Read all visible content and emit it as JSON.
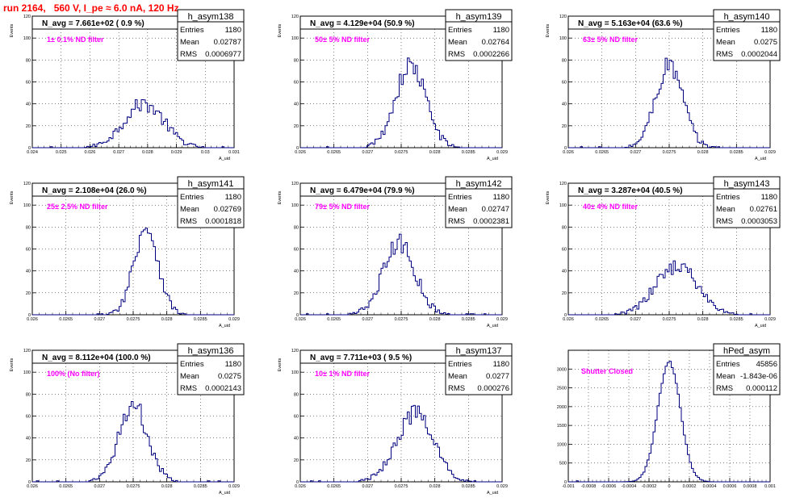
{
  "page_title": "run 2164,   560 V, I_pe ≈ 6.0 nA, 120 Hz",
  "colors": {
    "histogram": "#000080",
    "filter_label": "#ff00ff",
    "title": "#ff0000",
    "grid": "#000000"
  },
  "chart_data": [
    {
      "type": "histogram",
      "name": "h_asym138",
      "headline": "N_avg = 7.661e+02 ( 0.9 %)",
      "filter_label": "1± 0.1% ND filter",
      "stats": {
        "entries": "1180",
        "mean": "0.02787",
        "rms": "0.0006977"
      },
      "stats_labels": [
        "Entries",
        "Mean",
        "RMS"
      ],
      "xlabel": "A_uid",
      "ylabel": "Events",
      "xlim": [
        0.024,
        0.031
      ],
      "ylim": [
        0,
        120
      ],
      "xticks": [
        "0.024",
        "0.025",
        "0.026",
        "0.027",
        "0.028",
        "0.029",
        "0.03",
        "0.031"
      ],
      "yticks": [
        "0",
        "20",
        "40",
        "60",
        "80",
        "100",
        "120"
      ],
      "grid": true,
      "mean_value": 0.02787,
      "rms_value": 0.0006977,
      "peak": 40
    },
    {
      "type": "histogram",
      "name": "h_asym139",
      "headline": "N_avg = 4.129e+04 (50.9 %)",
      "filter_label": "50± 5% ND filter",
      "stats": {
        "entries": "1180",
        "mean": "0.02764",
        "rms": "0.0002266"
      },
      "stats_labels": [
        "Entries",
        "Mean",
        "RMS"
      ],
      "xlabel": "A_uid",
      "ylabel": "Events",
      "xlim": [
        0.026,
        0.029
      ],
      "ylim": [
        0,
        120
      ],
      "xticks": [
        "0.026",
        "0.0265",
        "0.027",
        "0.0275",
        "0.028",
        "0.0285",
        "0.029"
      ],
      "yticks": [
        "0",
        "20",
        "40",
        "60",
        "80",
        "100",
        "120"
      ],
      "grid": true,
      "mean_value": 0.02764,
      "rms_value": 0.0002266,
      "peak": 75
    },
    {
      "type": "histogram",
      "name": "h_asym140",
      "headline": "N_avg = 5.163e+04 (63.6 %)",
      "filter_label": "63± 5% ND filter",
      "stats": {
        "entries": "1180",
        "mean": "0.0275",
        "rms": "0.0002044"
      },
      "stats_labels": [
        "Entries",
        "Mean",
        "RMS"
      ],
      "xlabel": "A_uid",
      "ylabel": "Events",
      "xlim": [
        0.026,
        0.029
      ],
      "ylim": [
        0,
        120
      ],
      "xticks": [
        "0.026",
        "0.0265",
        "0.027",
        "0.0275",
        "0.028",
        "0.0285",
        "0.029"
      ],
      "yticks": [
        "0",
        "20",
        "40",
        "60",
        "80",
        "100",
        "120"
      ],
      "grid": true,
      "mean_value": 0.0275,
      "rms_value": 0.0002044,
      "peak": 75
    },
    {
      "type": "histogram",
      "name": "h_asym141",
      "headline": "N_avg = 2.108e+04 (26.0 %)",
      "filter_label": "25± 2.5% ND filter",
      "stats": {
        "entries": "1180",
        "mean": "0.02769",
        "rms": "0.0001818"
      },
      "stats_labels": [
        "Entries",
        "Mean",
        "RMS"
      ],
      "xlabel": "A_uid",
      "ylabel": "Events",
      "xlim": [
        0.026,
        0.029
      ],
      "ylim": [
        0,
        120
      ],
      "xticks": [
        "0.026",
        "0.0265",
        "0.027",
        "0.0275",
        "0.028",
        "0.0285",
        "0.029"
      ],
      "yticks": [
        "0",
        "20",
        "40",
        "60",
        "80",
        "100",
        "120"
      ],
      "grid": true,
      "mean_value": 0.02769,
      "rms_value": 0.0001818,
      "peak": 80
    },
    {
      "type": "histogram",
      "name": "h_asym142",
      "headline": "N_avg = 6.479e+04 (79.9 %)",
      "filter_label": "79± 5% ND filter",
      "stats": {
        "entries": "1180",
        "mean": "0.02747",
        "rms": "0.0002381"
      },
      "stats_labels": [
        "Entries",
        "Mean",
        "RMS"
      ],
      "xlabel": "A_uid",
      "ylabel": "Events",
      "xlim": [
        0.026,
        0.029
      ],
      "ylim": [
        0,
        120
      ],
      "xticks": [
        "0.026",
        "0.0265",
        "0.027",
        "0.0275",
        "0.028",
        "0.0285",
        "0.029"
      ],
      "yticks": [
        "0",
        "20",
        "40",
        "60",
        "80",
        "100",
        "120"
      ],
      "grid": true,
      "mean_value": 0.02747,
      "rms_value": 0.0002381,
      "peak": 65
    },
    {
      "type": "histogram",
      "name": "h_asym143",
      "headline": "N_avg = 3.287e+04 (40.5 %)",
      "filter_label": "40± 4% ND filter",
      "stats": {
        "entries": "1180",
        "mean": "0.02761",
        "rms": "0.0003053"
      },
      "stats_labels": [
        "Entries",
        "Mean",
        "RMS"
      ],
      "xlabel": "A_uid",
      "ylabel": "Events",
      "xlim": [
        0.026,
        0.029
      ],
      "ylim": [
        0,
        120
      ],
      "xticks": [
        "0.026",
        "0.0265",
        "0.027",
        "0.0275",
        "0.028",
        "0.0285",
        "0.029"
      ],
      "yticks": [
        "0",
        "20",
        "40",
        "60",
        "80",
        "100",
        "120"
      ],
      "grid": true,
      "mean_value": 0.02761,
      "rms_value": 0.0003053,
      "peak": 45
    },
    {
      "type": "histogram",
      "name": "h_asym136",
      "headline": "N_avg = 8.112e+04 (100.0 %)",
      "filter_label": "100% (No filter)",
      "stats": {
        "entries": "1180",
        "mean": "0.0275",
        "rms": "0.0002143"
      },
      "stats_labels": [
        "Entries",
        "Mean",
        "RMS"
      ],
      "xlabel": "A_uid",
      "ylabel": "Events",
      "xlim": [
        0.026,
        0.029
      ],
      "ylim": [
        0,
        120
      ],
      "xticks": [
        "0.026",
        "0.0265",
        "0.027",
        "0.0275",
        "0.028",
        "0.0285",
        "0.029"
      ],
      "yticks": [
        "0",
        "20",
        "40",
        "60",
        "80",
        "100",
        "120"
      ],
      "grid": true,
      "mean_value": 0.0275,
      "rms_value": 0.0002143,
      "peak": 70
    },
    {
      "type": "histogram",
      "name": "h_asym137",
      "headline": "N_avg = 7.711e+03 ( 9.5 %)",
      "filter_label": "10± 1% ND filter",
      "stats": {
        "entries": "1180",
        "mean": "0.0277",
        "rms": "0.000276"
      },
      "stats_labels": [
        "Entries",
        "Mean",
        "RMS"
      ],
      "xlabel": "A_uid",
      "ylabel": "Events",
      "xlim": [
        0.026,
        0.029
      ],
      "ylim": [
        0,
        120
      ],
      "xticks": [
        "0.026",
        "0.0265",
        "0.027",
        "0.0275",
        "0.028",
        "0.0285",
        "0.029"
      ],
      "yticks": [
        "0",
        "20",
        "40",
        "60",
        "80",
        "100",
        "120"
      ],
      "grid": true,
      "mean_value": 0.0277,
      "rms_value": 0.000276,
      "peak": 62
    },
    {
      "type": "histogram",
      "name": "hPed_asym",
      "headline": "",
      "filter_label": "Shutter Closed",
      "stats": {
        "entries": "45856",
        "mean": "-1.843e-06",
        "rms": "0.000112"
      },
      "stats_labels": [
        "Entries",
        "Mean",
        "RMS"
      ],
      "xlabel": "",
      "ylabel": "",
      "xlim": [
        -0.001,
        0.001
      ],
      "ylim": [
        0,
        3500
      ],
      "xticks": [
        "-0.001",
        "-0.0008",
        "-0.0006",
        "-0.0004",
        "-0.0002",
        "0",
        "0.0002",
        "0.0004",
        "0.0006",
        "0.0008",
        "0.001"
      ],
      "yticks": [
        "0",
        "500",
        "1000",
        "1500",
        "2000",
        "2500",
        "3000"
      ],
      "grid": true,
      "mean_value": -1.843e-06,
      "rms_value": 0.000112,
      "peak": 3200
    }
  ]
}
